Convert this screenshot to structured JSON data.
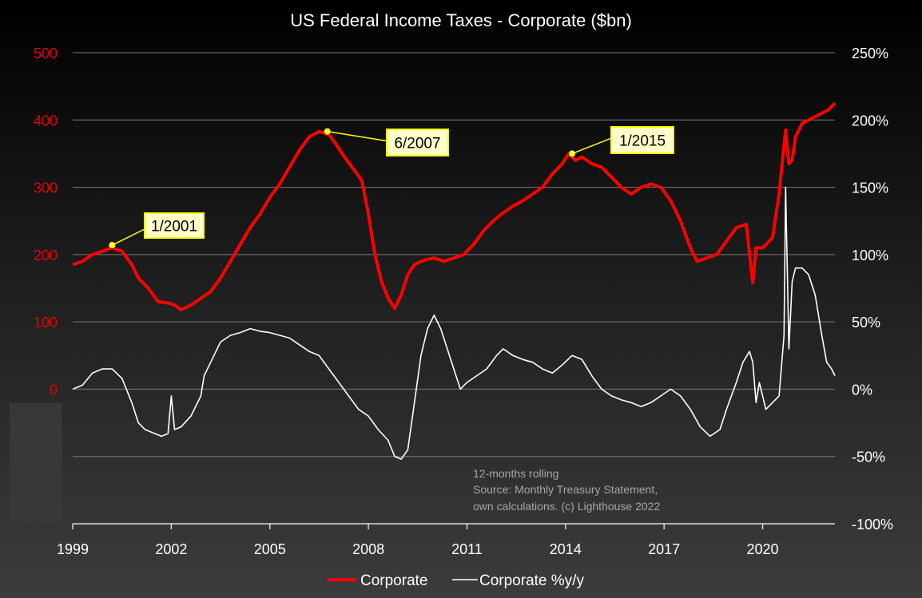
{
  "chart_data": {
    "type": "line",
    "title": "US Federal Income Taxes - Corporate ($bn)",
    "x_ticks": [
      "1999",
      "2002",
      "2005",
      "2008",
      "2011",
      "2014",
      "2017",
      "2020"
    ],
    "y_left": {
      "ticks": [
        "500",
        "400",
        "300",
        "200",
        "100",
        "0"
      ],
      "range": [
        -200,
        500
      ]
    },
    "y_right": {
      "ticks": [
        "250%",
        "200%",
        "150%",
        "100%",
        "50%",
        "0%",
        "-50%",
        "-100%"
      ],
      "range": [
        -100,
        250
      ]
    },
    "grid": true,
    "legend_position": "bottom",
    "colors": {
      "corporate": "#ff0000",
      "yoy": "#ffffff",
      "annotation_fill": "#ffffc8",
      "annotation_border": "#ffff00"
    },
    "series": [
      {
        "name": "Corporate",
        "axis": "left",
        "x": [
          1999.0,
          1999.3,
          1999.6,
          1999.9,
          2000.2,
          2000.5,
          2000.8,
          2001.0,
          2001.3,
          2001.6,
          2001.9,
          2002.1,
          2002.3,
          2002.6,
          2002.9,
          2003.2,
          2003.5,
          2003.8,
          2004.1,
          2004.4,
          2004.7,
          2005.0,
          2005.3,
          2005.6,
          2005.9,
          2006.2,
          2006.5,
          2006.8,
          2007.0,
          2007.2,
          2007.5,
          2007.8,
          2008.0,
          2008.2,
          2008.4,
          2008.6,
          2008.8,
          2009.0,
          2009.2,
          2009.4,
          2009.6,
          2009.8,
          2010.0,
          2010.3,
          2010.6,
          2010.9,
          2011.2,
          2011.5,
          2011.8,
          2012.1,
          2012.4,
          2012.7,
          2013.0,
          2013.3,
          2013.6,
          2013.9,
          2014.1,
          2014.3,
          2014.5,
          2014.8,
          2015.1,
          2015.4,
          2015.7,
          2016.0,
          2016.3,
          2016.6,
          2016.9,
          2017.2,
          2017.5,
          2017.8,
          2018.0,
          2018.3,
          2018.6,
          2018.9,
          2019.2,
          2019.5,
          2019.7,
          2019.8,
          2020.0,
          2020.3,
          2020.5,
          2020.7,
          2020.8,
          2020.9,
          2021.0,
          2021.2,
          2021.4,
          2021.6,
          2021.8,
          2022.0,
          2022.2
        ],
        "values": [
          185,
          190,
          200,
          205,
          210,
          205,
          185,
          165,
          150,
          130,
          128,
          125,
          118,
          125,
          135,
          145,
          165,
          190,
          215,
          240,
          260,
          285,
          305,
          330,
          355,
          375,
          383,
          378,
          365,
          350,
          330,
          310,
          260,
          200,
          160,
          135,
          120,
          140,
          170,
          185,
          190,
          193,
          195,
          190,
          195,
          200,
          215,
          235,
          250,
          262,
          272,
          280,
          290,
          300,
          320,
          335,
          350,
          340,
          345,
          335,
          330,
          315,
          300,
          290,
          300,
          305,
          300,
          280,
          250,
          210,
          190,
          195,
          200,
          220,
          240,
          245,
          158,
          210,
          210,
          225,
          290,
          385,
          335,
          340,
          375,
          395,
          400,
          405,
          410,
          415,
          425
        ]
      },
      {
        "name": "Corporate %y/y",
        "axis": "right",
        "x": [
          1999.0,
          1999.3,
          1999.6,
          1999.9,
          2000.2,
          2000.5,
          2000.8,
          2001.0,
          2001.2,
          2001.4,
          2001.7,
          2001.9,
          2002.0,
          2002.1,
          2002.3,
          2002.6,
          2002.9,
          2003.0,
          2003.2,
          2003.5,
          2003.8,
          2004.1,
          2004.4,
          2004.7,
          2005.0,
          2005.3,
          2005.6,
          2005.9,
          2006.2,
          2006.5,
          2006.8,
          2007.1,
          2007.4,
          2007.7,
          2008.0,
          2008.3,
          2008.6,
          2008.8,
          2009.0,
          2009.2,
          2009.4,
          2009.6,
          2009.8,
          2010.0,
          2010.2,
          2010.4,
          2010.6,
          2010.8,
          2011.0,
          2011.3,
          2011.6,
          2011.9,
          2012.1,
          2012.4,
          2012.7,
          2013.0,
          2013.3,
          2013.6,
          2013.9,
          2014.2,
          2014.5,
          2014.8,
          2015.1,
          2015.4,
          2015.7,
          2016.0,
          2016.3,
          2016.6,
          2016.9,
          2017.2,
          2017.5,
          2017.8,
          2018.1,
          2018.4,
          2018.7,
          2018.9,
          2019.2,
          2019.4,
          2019.6,
          2019.7,
          2019.8,
          2019.9,
          2020.1,
          2020.3,
          2020.5,
          2020.65,
          2020.7,
          2020.8,
          2020.9,
          2021.0,
          2021.2,
          2021.4,
          2021.6,
          2021.8,
          2021.95,
          2022.1,
          2022.2
        ],
        "values": [
          0,
          3,
          12,
          15,
          15,
          8,
          -10,
          -25,
          -30,
          -32,
          -35,
          -33,
          -5,
          -30,
          -28,
          -20,
          -5,
          10,
          20,
          35,
          40,
          42,
          45,
          43,
          42,
          40,
          38,
          33,
          28,
          25,
          15,
          5,
          -5,
          -15,
          -20,
          -30,
          -38,
          -50,
          -52,
          -45,
          -10,
          25,
          45,
          55,
          45,
          30,
          15,
          0,
          5,
          10,
          15,
          25,
          30,
          25,
          22,
          20,
          15,
          12,
          18,
          25,
          22,
          10,
          0,
          -5,
          -8,
          -10,
          -13,
          -10,
          -5,
          0,
          -5,
          -15,
          -28,
          -35,
          -30,
          -15,
          5,
          20,
          28,
          20,
          -10,
          5,
          -15,
          -10,
          -5,
          40,
          150,
          30,
          80,
          90,
          90,
          85,
          70,
          40,
          20,
          15,
          10
        ]
      }
    ],
    "annotations": [
      {
        "text": "1/2001",
        "x": 2000.2,
        "y": 214
      },
      {
        "text": "6/2007",
        "x": 2006.75,
        "y": 383
      },
      {
        "text": "1/2015",
        "x": 2014.2,
        "y": 350
      }
    ],
    "note_lines": [
      "12-months rolling",
      "Source: Monthly Treasury Statement,",
      "own calculations. (c) Lighthouse 2022"
    ]
  }
}
